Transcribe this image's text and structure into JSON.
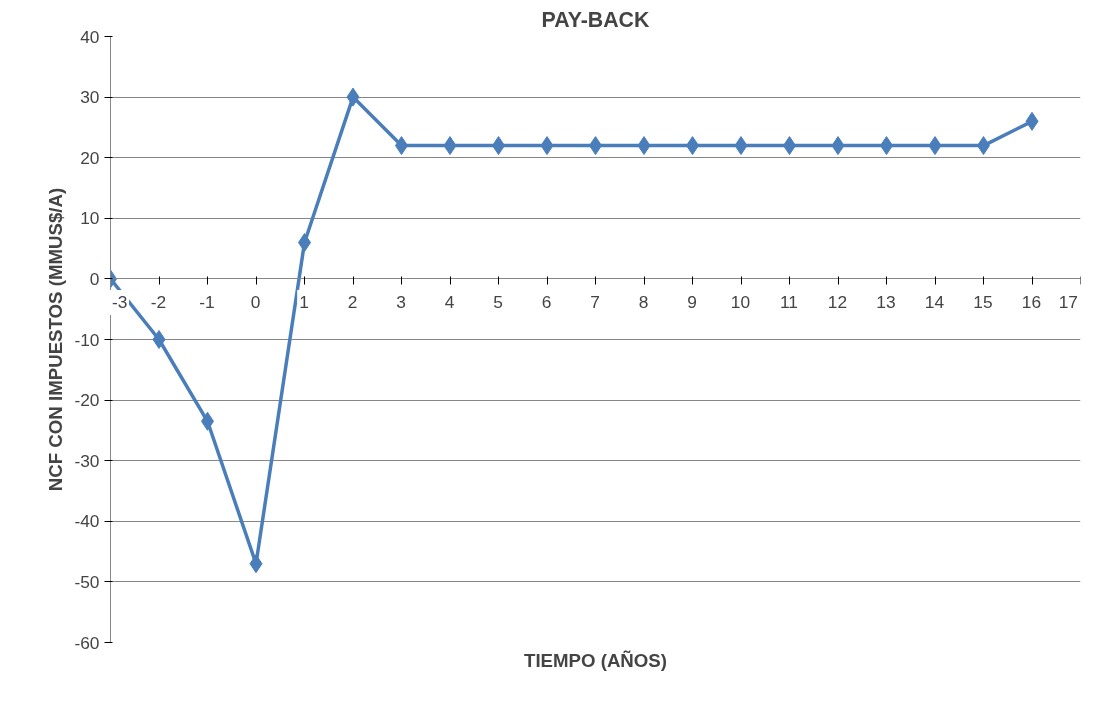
{
  "chart_data": {
    "type": "line",
    "title": "PAY-BACK",
    "xlabel": "TIEMPO (AÑOS)",
    "ylabel": "NCF CON IMPUESTOS (MMUS$/A)",
    "x": [
      -3,
      -2,
      -1,
      0,
      1,
      2,
      3,
      4,
      5,
      6,
      7,
      8,
      9,
      10,
      11,
      12,
      13,
      14,
      15,
      16
    ],
    "series": [
      {
        "color": "#4a7ebb",
        "values": [
          0,
          -10,
          -23.5,
          -47,
          6,
          30,
          22,
          22,
          22,
          22,
          22,
          22,
          22,
          22,
          22,
          22,
          22,
          22,
          22,
          26
        ]
      }
    ],
    "xlim": [
      -3,
      17
    ],
    "xticks": [
      -3,
      -2,
      -1,
      0,
      1,
      2,
      3,
      4,
      5,
      6,
      7,
      8,
      9,
      10,
      11,
      12,
      13,
      14,
      15,
      16,
      17
    ],
    "ylim": [
      -60,
      40
    ],
    "yticks": [
      -60,
      -50,
      -40,
      -30,
      -20,
      -10,
      0,
      10,
      20,
      30,
      40
    ],
    "grid": "y",
    "marker": "diamond",
    "line_style": "solid"
  }
}
